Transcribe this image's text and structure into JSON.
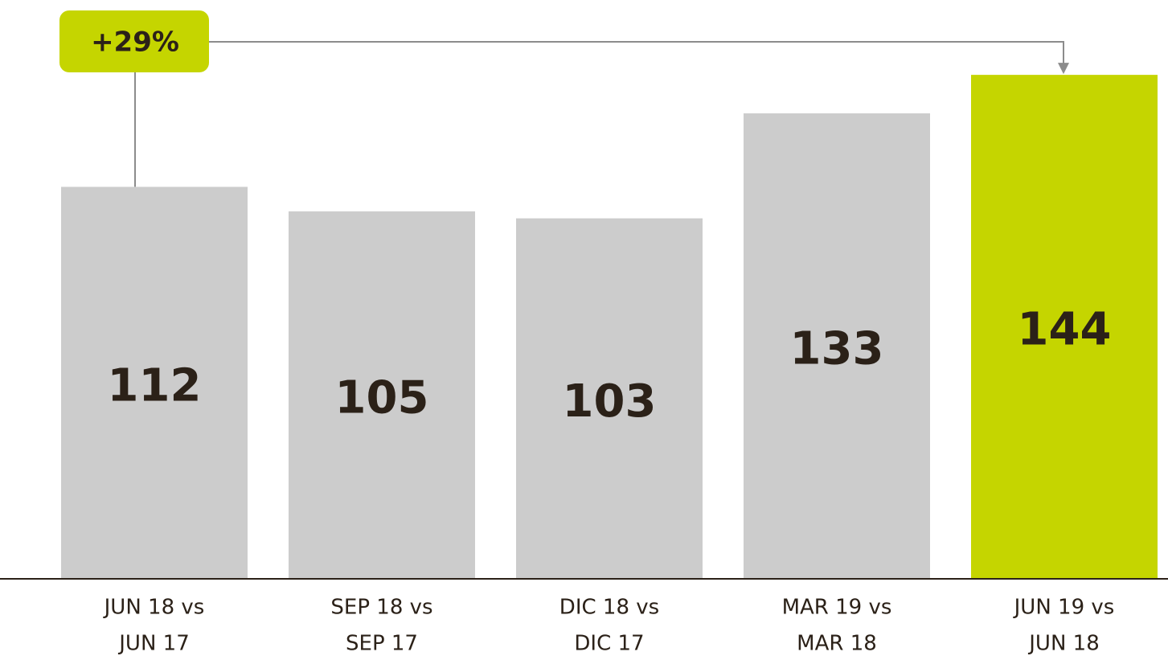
{
  "chart_data": {
    "type": "bar",
    "annotation": "+29%",
    "annotation_color": "#c5d500",
    "categories": [
      [
        "JUN 18 vs",
        "JUN 17"
      ],
      [
        "SEP 18 vs",
        "SEP 17"
      ],
      [
        "DIC 18 vs",
        "DIC 17"
      ],
      [
        "MAR 19 vs",
        "MAR 18"
      ],
      [
        "JUN 19 vs",
        "JUN 18"
      ]
    ],
    "values": [
      112,
      105,
      103,
      133,
      144
    ],
    "colors": [
      "#cccccc",
      "#cccccc",
      "#cccccc",
      "#cccccc",
      "#c5d500"
    ],
    "ylim": [
      0,
      150
    ],
    "grid": false
  }
}
